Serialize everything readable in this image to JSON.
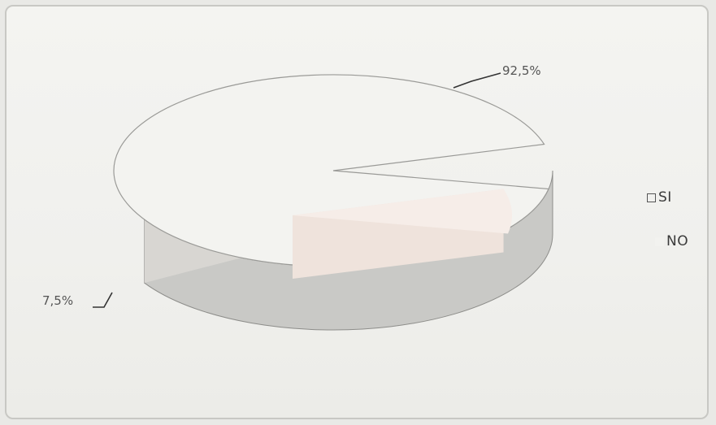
{
  "chart_data": {
    "type": "pie",
    "title": "",
    "categories": [
      "SI",
      "NO"
    ],
    "values": [
      92.5,
      7.5
    ],
    "data_labels": [
      "92,5%",
      "7,5%"
    ],
    "colors": [
      "#f3f3f0",
      "#f6ede8"
    ],
    "legend_position": "right",
    "three_d": true,
    "exploded_slice": "NO"
  },
  "legend": {
    "items": [
      {
        "label": "SI"
      },
      {
        "label": "NO"
      }
    ]
  }
}
